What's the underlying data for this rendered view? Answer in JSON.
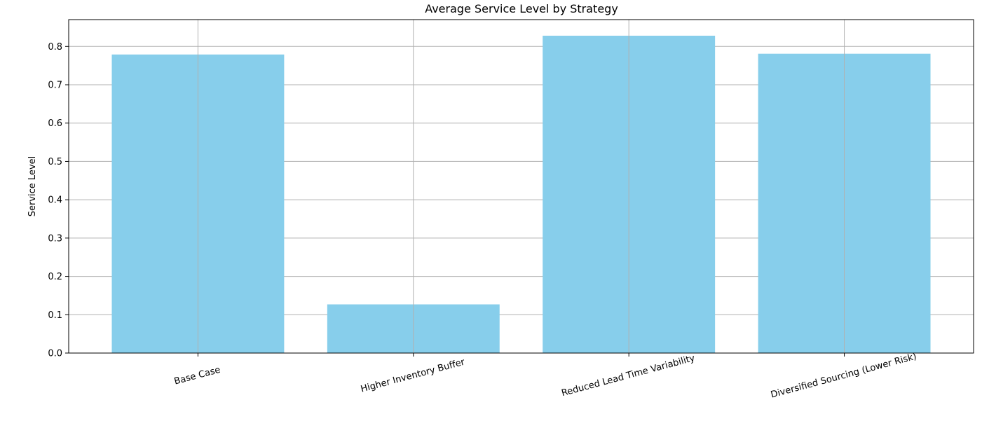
{
  "chart_data": {
    "type": "bar",
    "title": "Average Service Level by Strategy",
    "xlabel": "",
    "ylabel": "Service Level",
    "categories": [
      "Base Case",
      "Higher Inventory Buffer",
      "Reduced Lead Time Variability",
      "Diversified Sourcing (Lower Risk)"
    ],
    "values": [
      0.779,
      0.127,
      0.828,
      0.781
    ],
    "ylim": [
      0,
      0.87
    ],
    "yticks": [
      "0.0",
      "0.1",
      "0.2",
      "0.3",
      "0.4",
      "0.5",
      "0.6",
      "0.7",
      "0.8"
    ],
    "grid": true,
    "bar_color": "#87ceeb",
    "grid_color": "#b0b0b0",
    "x_tick_rotation_deg": 15
  }
}
